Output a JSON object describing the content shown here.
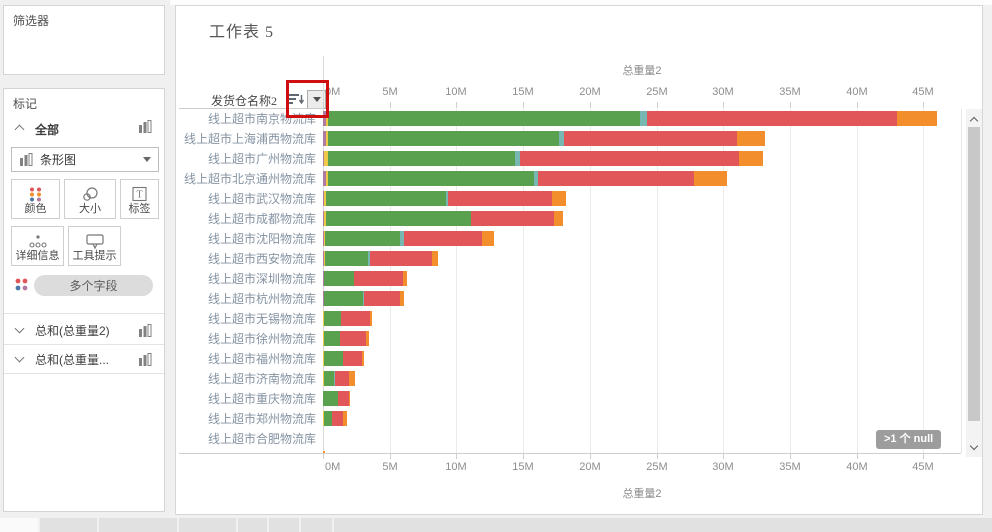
{
  "sidebar": {
    "filters_card": {
      "title": "筛选器"
    },
    "marks_card": {
      "title": "标记",
      "section_all": "全部",
      "mark_type_dropdown": {
        "value": "条形图",
        "icon": "bar-chart-icon"
      },
      "buttons": [
        {
          "label": "颜色",
          "icon": "color-dots-icon"
        },
        {
          "label": "大小",
          "icon": "size-circles-icon"
        },
        {
          "label": "标签",
          "icon": "text-label-icon"
        },
        {
          "label": "详细信息",
          "icon": "detail-dots-icon"
        },
        {
          "label": "工具提示",
          "icon": "tooltip-bubble-icon"
        }
      ],
      "multi_field_pill": {
        "label": "多个字段",
        "icon": "multi-field-dots-icon"
      },
      "fields": [
        {
          "label": "总和(总重量2)",
          "icon": "bar-chart-icon"
        },
        {
          "label": "总和(总重量...",
          "icon": "bar-chart-icon"
        }
      ]
    }
  },
  "sheet": {
    "title": "工作表 5",
    "row_header": "发货仓名称2",
    "null_badge": ">1 个 null"
  },
  "colors": {
    "annotation_red": "#cf0f0f",
    "null_badge_bg": "#9d9d9d"
  },
  "chart_data": {
    "type": "bar",
    "orientation": "horizontal-stacked",
    "title": "工作表 5",
    "axis_label_top": "总重量2",
    "axis_label_bottom": "总重量2",
    "x_ticks": [
      "0M",
      "5M",
      "10M",
      "15M",
      "20M",
      "25M",
      "30M",
      "35M",
      "40M",
      "45M"
    ],
    "xlim_M": [
      0,
      47.8
    ],
    "grid": true,
    "series_order": [
      "purple",
      "yellow",
      "green",
      "teal",
      "red",
      "orange"
    ],
    "series_colors": {
      "purple": "#b07aa1",
      "yellow": "#edc948",
      "green": "#59a14f",
      "teal": "#76b7b2",
      "red": "#e15759",
      "orange": "#f28e2b"
    },
    "rows": [
      {
        "label": "线上超市南京物流库",
        "values": {
          "purple": 0.2,
          "yellow": 0.2,
          "green": 23.4,
          "teal": 0.5,
          "red": 18.7,
          "orange": 3.0
        }
      },
      {
        "label": "线上超市上海浦西物流库",
        "values": {
          "purple": 0.2,
          "yellow": 0.2,
          "green": 17.3,
          "teal": 0.4,
          "red": 12.9,
          "orange": 2.1
        }
      },
      {
        "label": "线上超市广州物流库",
        "values": {
          "purple": 0.1,
          "yellow": 0.3,
          "green": 14.0,
          "teal": 0.4,
          "red": 16.4,
          "orange": 1.8
        }
      },
      {
        "label": "线上超市北京通州物流库",
        "values": {
          "purple": 0.2,
          "yellow": 0.2,
          "green": 15.4,
          "teal": 0.3,
          "red": 11.7,
          "orange": 2.5
        }
      },
      {
        "label": "线上超市武汉物流库",
        "values": {
          "purple": 0.1,
          "yellow": 0.15,
          "green": 9.0,
          "teal": 0.1,
          "red": 7.85,
          "orange": 1.0
        }
      },
      {
        "label": "线上超市成都物流库",
        "values": {
          "purple": 0.05,
          "yellow": 0.15,
          "green": 10.9,
          "teal": 0,
          "red": 6.2,
          "orange": 0.7
        }
      },
      {
        "label": "线上超市沈阳物流库",
        "values": {
          "purple": 0.05,
          "yellow": 0.1,
          "green": 5.6,
          "teal": 0.3,
          "red": 5.85,
          "orange": 0.9
        }
      },
      {
        "label": "线上超市西安物流库",
        "values": {
          "purple": 0.05,
          "yellow": 0.1,
          "green": 3.25,
          "teal": 0.1,
          "red": 4.7,
          "orange": 0.45
        }
      },
      {
        "label": "线上超市深圳物流库",
        "values": {
          "purple": 0.05,
          "yellow": 0.05,
          "green": 2.2,
          "teal": 0,
          "red": 3.7,
          "orange": 0.3
        }
      },
      {
        "label": "线上超市杭州物流库",
        "values": {
          "purple": 0.05,
          "yellow": 0.05,
          "green": 2.9,
          "teal": 0.05,
          "red": 2.7,
          "orange": 0.3
        }
      },
      {
        "label": "线上超市无锡物流库",
        "values": {
          "purple": 0,
          "yellow": 0.05,
          "green": 1.3,
          "teal": 0,
          "red": 2.15,
          "orange": 0.2
        }
      },
      {
        "label": "线上超市徐州物流库",
        "values": {
          "purple": 0,
          "yellow": 0.05,
          "green": 1.25,
          "teal": 0,
          "red": 1.95,
          "orange": 0.2
        }
      },
      {
        "label": "线上超市福州物流库",
        "values": {
          "purple": 0,
          "yellow": 0.05,
          "green": 1.45,
          "teal": 0,
          "red": 1.4,
          "orange": 0.15
        }
      },
      {
        "label": "线上超市济南物流库",
        "values": {
          "purple": 0,
          "yellow": 0.05,
          "green": 0.8,
          "teal": 0.05,
          "red": 1.05,
          "orange": 0.45
        }
      },
      {
        "label": "线上超市重庆物流库",
        "values": {
          "purple": 0,
          "yellow": 0,
          "green": 1.1,
          "teal": 0,
          "red": 0.85,
          "orange": 0.05
        }
      },
      {
        "label": "线上超市郑州物流库",
        "values": {
          "purple": 0,
          "yellow": 0.05,
          "green": 0.6,
          "teal": 0,
          "red": 0.85,
          "orange": 0.3
        }
      },
      {
        "label": "线上超市合肥物流库",
        "values": {
          "purple": 0,
          "yellow": 0,
          "green": 0,
          "teal": 0,
          "red": 0,
          "orange": 0
        }
      },
      {
        "label": "",
        "values": {
          "purple": 0,
          "yellow": 0,
          "green": 0,
          "teal": 0,
          "red": 0,
          "orange": 0.15
        }
      }
    ]
  }
}
